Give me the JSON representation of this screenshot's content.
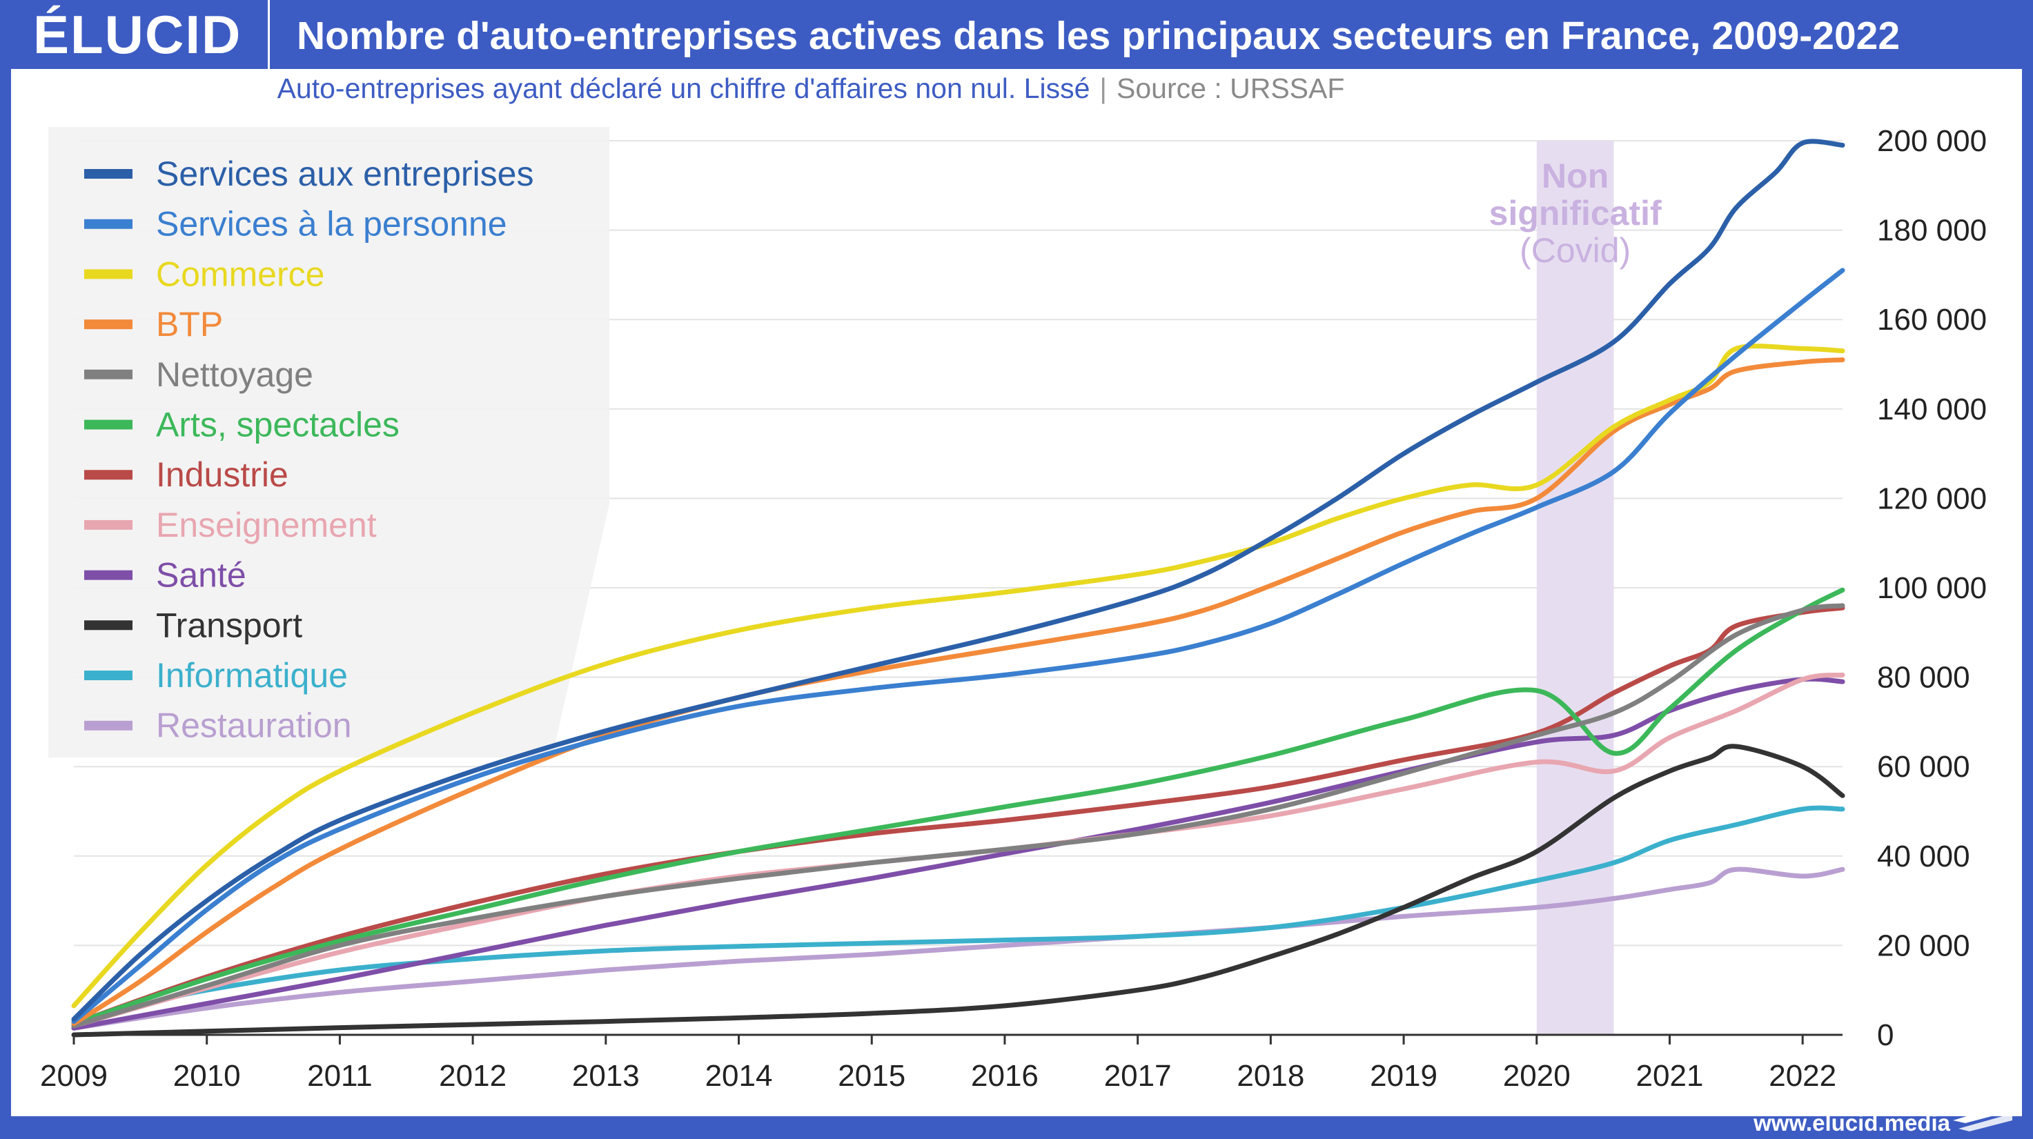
{
  "brand": "ÉLUCID",
  "title": "Nombre d'auto-entreprises actives dans les principaux secteurs en France, 2009-2022",
  "subtitle": "Auto-entreprises ayant déclaré un chiffre d'affaires non nul. Lissé",
  "subtitle_sep": "|",
  "source": "Source : URSSAF",
  "footer_url": "www.elucid.media",
  "colors": {
    "brand_blue": "#3d5cc3",
    "covid_band": "#e6def0",
    "covid_text": "#c9b1e0"
  },
  "chart_data": {
    "type": "line",
    "x_label": "",
    "y_label": "",
    "x_ticks": [
      "2009",
      "2010",
      "2011",
      "2012",
      "2013",
      "2014",
      "2015",
      "2016",
      "2017",
      "2018",
      "2019",
      "2020",
      "2021",
      "2022"
    ],
    "y_ticks": [
      "0",
      "20 000",
      "40 000",
      "60 000",
      "80 000",
      "100 000",
      "120 000",
      "140 000",
      "160 000",
      "180 000",
      "200 000"
    ],
    "xlim": [
      2009,
      2022.3
    ],
    "ylim": [
      0,
      200000
    ],
    "y_axis_side": "right",
    "grid": "horizontal",
    "legend_position": "top-left",
    "annotation": {
      "label_lines": [
        "Non",
        "significatif",
        "(Covid)"
      ],
      "x_start": 2020.0,
      "x_end": 2020.58
    },
    "series": [
      {
        "name": "Services aux entreprises",
        "color": "#2b5fa8",
        "x": [
          2009,
          2009.5,
          2010,
          2010.5,
          2011,
          2012,
          2013,
          2014,
          2015,
          2016,
          2017,
          2017.5,
          2018,
          2018.5,
          2019,
          2019.5,
          2020,
          2020.58,
          2021,
          2021.3,
          2021.5,
          2021.8,
          2022,
          2022.3
        ],
        "y": [
          3500,
          18000,
          30000,
          40000,
          48000,
          59000,
          68000,
          75500,
          82500,
          89500,
          97500,
          103000,
          111000,
          120000,
          130000,
          138500,
          146000,
          155000,
          168000,
          176000,
          185000,
          193000,
          199500,
          199000
        ]
      },
      {
        "name": "Services à la personne",
        "color": "#3a7fd0",
        "x": [
          2009,
          2009.5,
          2010,
          2010.5,
          2011,
          2012,
          2013,
          2014,
          2015,
          2016,
          2017,
          2017.5,
          2018,
          2018.5,
          2019,
          2019.5,
          2020,
          2020.58,
          2021,
          2021.5,
          2022,
          2022.3
        ],
        "y": [
          3000,
          15500,
          28000,
          38500,
          46000,
          57500,
          66500,
          73500,
          77500,
          80500,
          84500,
          87500,
          92000,
          98500,
          105500,
          112000,
          118000,
          126000,
          139000,
          152000,
          164000,
          171000
        ]
      },
      {
        "name": "Commerce",
        "color": "#e8d820",
        "x": [
          2009,
          2009.5,
          2010,
          2010.5,
          2011,
          2012,
          2013,
          2014,
          2015,
          2016,
          2017,
          2017.5,
          2018,
          2018.5,
          2019,
          2019.5,
          2020,
          2020.58,
          2021,
          2021.3,
          2021.5,
          2022,
          2022.3
        ],
        "y": [
          6500,
          23000,
          38000,
          50000,
          59000,
          72000,
          83000,
          90500,
          95500,
          99000,
          103000,
          106000,
          110000,
          115500,
          120000,
          123000,
          123000,
          136000,
          142000,
          146000,
          153500,
          153500,
          153000
        ]
      },
      {
        "name": "BTP",
        "color": "#f28a3a",
        "x": [
          2009,
          2009.5,
          2010,
          2010.5,
          2011,
          2012,
          2013,
          2014,
          2015,
          2016,
          2017,
          2017.5,
          2018,
          2018.5,
          2019,
          2019.5,
          2020,
          2020.58,
          2021,
          2021.3,
          2021.5,
          2022,
          2022.3
        ],
        "y": [
          2500,
          12000,
          23000,
          33000,
          41500,
          55000,
          67000,
          75500,
          81500,
          86500,
          91500,
          95000,
          100500,
          106500,
          112500,
          117000,
          120000,
          135000,
          141000,
          144500,
          148500,
          150500,
          151000
        ]
      },
      {
        "name": "Nettoyage",
        "color": "#808080",
        "x": [
          2009,
          2010,
          2011,
          2012,
          2013,
          2014,
          2015,
          2016,
          2017,
          2018,
          2019,
          2020,
          2020.58,
          2021,
          2021.5,
          2022,
          2022.3
        ],
        "y": [
          2000,
          11000,
          20000,
          26000,
          31000,
          35000,
          38500,
          41500,
          45000,
          50500,
          58500,
          67000,
          72000,
          79000,
          89500,
          95000,
          96000
        ]
      },
      {
        "name": "Arts, spectacles",
        "color": "#3cb85a",
        "x": [
          2009,
          2010,
          2011,
          2012,
          2013,
          2014,
          2015,
          2016,
          2017,
          2018,
          2019,
          2020,
          2020.58,
          2021,
          2021.5,
          2022,
          2022.3
        ],
        "y": [
          2500,
          12500,
          21000,
          28000,
          35000,
          41000,
          46000,
          51000,
          56000,
          62500,
          70500,
          77000,
          63000,
          73000,
          86000,
          95000,
          99500
        ]
      },
      {
        "name": "Industrie",
        "color": "#b94a48",
        "x": [
          2009,
          2010,
          2011,
          2012,
          2013,
          2014,
          2015,
          2016,
          2017,
          2018,
          2019,
          2020,
          2020.58,
          2021,
          2021.3,
          2021.5,
          2022,
          2022.3
        ],
        "y": [
          2500,
          13000,
          22000,
          29500,
          36000,
          41000,
          45000,
          48000,
          51500,
          55500,
          61500,
          67500,
          76500,
          82500,
          86000,
          91500,
          94500,
          95500
        ]
      },
      {
        "name": "Enseignement",
        "color": "#e8a6b0",
        "x": [
          2009,
          2010,
          2011,
          2012,
          2013,
          2014,
          2015,
          2016,
          2017,
          2018,
          2019,
          2020,
          2020.58,
          2021,
          2021.5,
          2022,
          2022.3
        ],
        "y": [
          2000,
          10500,
          18500,
          25000,
          31000,
          35500,
          38500,
          41500,
          45000,
          49000,
          55000,
          61000,
          59000,
          66500,
          72500,
          79500,
          80500
        ]
      },
      {
        "name": "Santé",
        "color": "#7e4ea8",
        "x": [
          2009,
          2010,
          2011,
          2012,
          2013,
          2014,
          2015,
          2016,
          2017,
          2018,
          2019,
          2020,
          2020.58,
          2021,
          2021.5,
          2022,
          2022.3
        ],
        "y": [
          1500,
          7000,
          12500,
          18500,
          24500,
          30000,
          35000,
          40500,
          46000,
          52000,
          59000,
          65500,
          67000,
          72500,
          77000,
          79500,
          79000
        ]
      },
      {
        "name": "Transport",
        "color": "#333333",
        "x": [
          2009,
          2010,
          2011,
          2012,
          2013,
          2014,
          2015,
          2016,
          2017,
          2017.5,
          2018,
          2018.5,
          2019,
          2019.5,
          2020,
          2020.58,
          2021,
          2021.3,
          2021.5,
          2022,
          2022.3
        ],
        "y": [
          0,
          800,
          1600,
          2300,
          3000,
          3800,
          4800,
          6500,
          10000,
          13000,
          17500,
          22500,
          28500,
          35000,
          41000,
          53000,
          59000,
          62000,
          64500,
          60000,
          53500
        ]
      },
      {
        "name": "Informatique",
        "color": "#3bb0cc",
        "x": [
          2009,
          2009.5,
          2010,
          2011,
          2012,
          2013,
          2014,
          2015,
          2016,
          2017,
          2018,
          2019,
          2020,
          2020.58,
          2021,
          2021.5,
          2022,
          2022.3
        ],
        "y": [
          2500,
          6500,
          10000,
          14500,
          17000,
          18800,
          19800,
          20500,
          21200,
          22000,
          24000,
          28500,
          34500,
          38500,
          43500,
          47000,
          50500,
          50500
        ]
      },
      {
        "name": "Restauration",
        "color": "#b99fd1",
        "x": [
          2009,
          2010,
          2011,
          2012,
          2013,
          2014,
          2015,
          2016,
          2017,
          2018,
          2019,
          2020,
          2020.58,
          2021,
          2021.3,
          2021.5,
          2022,
          2022.3
        ],
        "y": [
          1500,
          6000,
          9500,
          12000,
          14500,
          16500,
          18000,
          20000,
          22000,
          24000,
          26500,
          28500,
          30500,
          32500,
          34000,
          37000,
          35500,
          37000
        ]
      }
    ]
  }
}
